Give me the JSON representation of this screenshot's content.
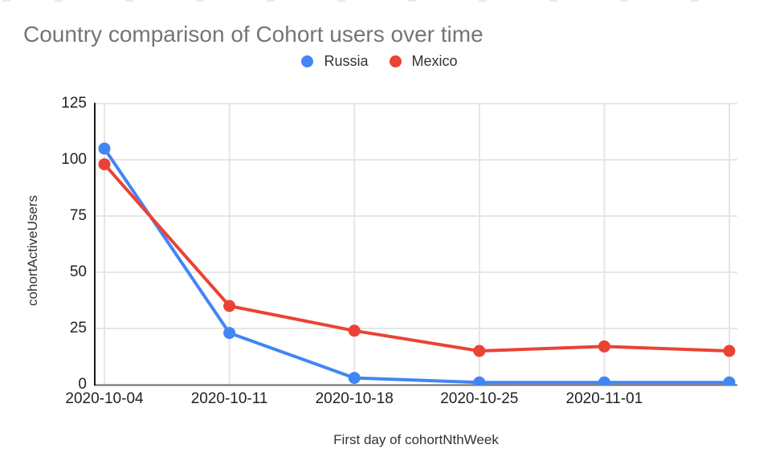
{
  "chart_data": {
    "type": "line",
    "title": "Country comparison of Cohort users over time",
    "title_color": "#757575",
    "xlabel": "First day of cohortNthWeek",
    "ylabel": "cohortActiveUsers",
    "x_tick_labels": [
      "2020-10-04",
      "2020-10-11",
      "2020-10-18",
      "2020-10-25",
      "2020-11-01",
      ""
    ],
    "y_ticks": [
      0,
      25,
      50,
      75,
      100,
      125
    ],
    "ylim": [
      0,
      125
    ],
    "grid": true,
    "legend_position": "top-center",
    "series": [
      {
        "name": "Russia",
        "color": "#4285F4",
        "values": [
          105,
          23,
          3,
          1,
          1,
          1
        ]
      },
      {
        "name": "Mexico",
        "color": "#EA4335",
        "values": [
          98,
          35,
          24,
          15,
          17,
          15
        ]
      }
    ],
    "gridline_color": "#e6e6e6",
    "axis_line_color": "#1a1a1a",
    "baseline_color": "#6b6b6b",
    "tick_label_color": "#222222"
  }
}
